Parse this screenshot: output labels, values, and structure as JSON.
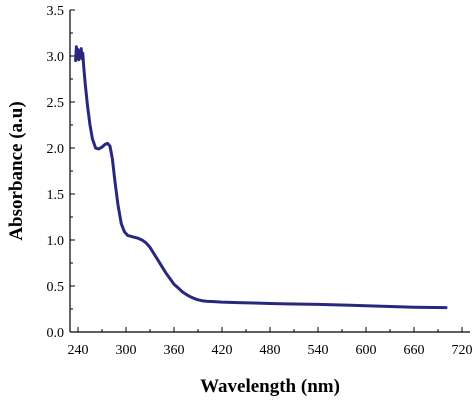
{
  "chart_data": {
    "type": "line",
    "title": "",
    "xlabel": "Wavelength (nm)",
    "ylabel": "Absorbance (a.u)",
    "xlim": [
      230,
      730
    ],
    "ylim": [
      0,
      3.5
    ],
    "xticks": [
      "240",
      "300",
      "360",
      "420",
      "480",
      "540",
      "600",
      "660",
      "720"
    ],
    "yticks": [
      "0.0",
      "0.5",
      "1.0",
      "1.5",
      "2.0",
      "2.5",
      "3.0",
      "3.5"
    ],
    "grid": false,
    "line_color": "#28287e",
    "series": [
      {
        "x": [
          237,
          238,
          239,
          240,
          241,
          242,
          243,
          244,
          245,
          246,
          247,
          249,
          252,
          255,
          258,
          262,
          266,
          270,
          274,
          277,
          280,
          283,
          286,
          290,
          294,
          298,
          302,
          306,
          310,
          315,
          320,
          325,
          330,
          335,
          340,
          345,
          350,
          355,
          360,
          365,
          370,
          375,
          380,
          385,
          390,
          395,
          400,
          410,
          420,
          440,
          460,
          480,
          500,
          540,
          580,
          620,
          660,
          700
        ],
        "y": [
          2.95,
          3.1,
          2.98,
          3.07,
          2.96,
          3.05,
          3.0,
          3.08,
          2.97,
          3.03,
          2.9,
          2.7,
          2.45,
          2.25,
          2.1,
          2.0,
          1.99,
          2.01,
          2.04,
          2.05,
          2.02,
          1.88,
          1.65,
          1.38,
          1.18,
          1.09,
          1.05,
          1.04,
          1.03,
          1.02,
          1.0,
          0.97,
          0.92,
          0.85,
          0.78,
          0.71,
          0.64,
          0.58,
          0.52,
          0.48,
          0.44,
          0.41,
          0.385,
          0.365,
          0.35,
          0.34,
          0.335,
          0.33,
          0.325,
          0.32,
          0.315,
          0.31,
          0.305,
          0.3,
          0.29,
          0.28,
          0.27,
          0.265
        ]
      }
    ]
  }
}
